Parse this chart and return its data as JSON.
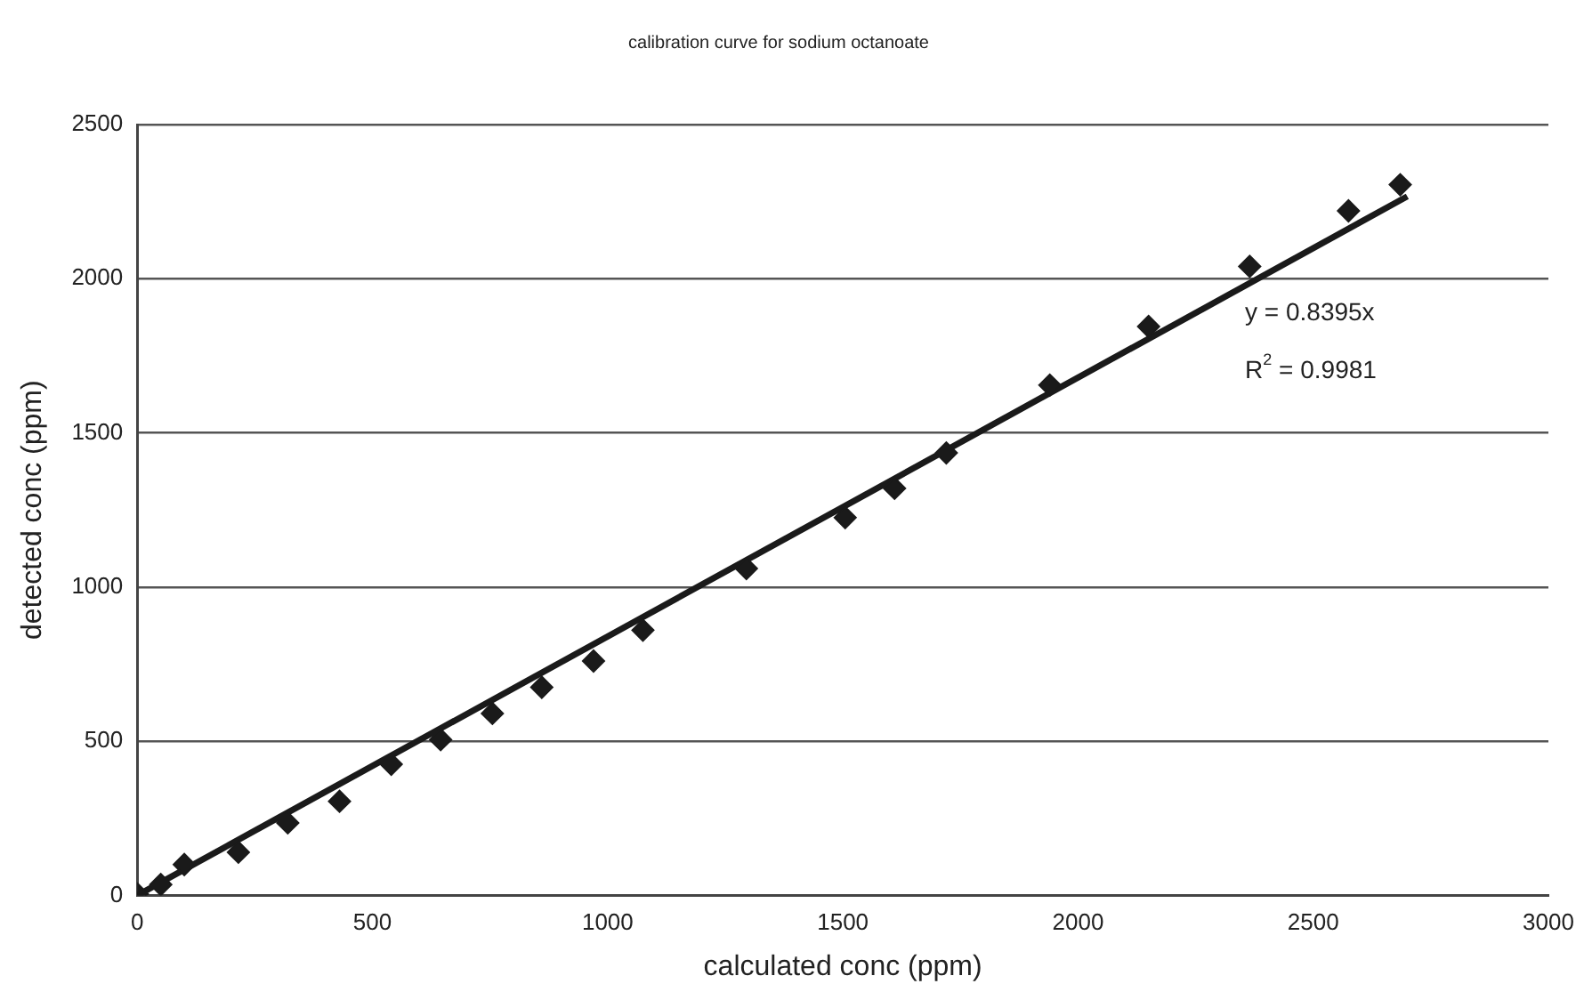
{
  "chart_data": {
    "type": "scatter",
    "title": "calibration curve for sodium octanoate",
    "xlabel": "calculated conc (ppm)",
    "ylabel": "detected conc (ppm)",
    "xlim": [
      0,
      3000
    ],
    "xticks": [
      0,
      500,
      1000,
      1500,
      2000,
      2500,
      3000
    ],
    "ylim": [
      0,
      2500
    ],
    "yticks": [
      0,
      500,
      1000,
      1500,
      2000,
      2500
    ],
    "grid": "y",
    "legend": false,
    "marker": "diamond",
    "annotations": [
      "y = 0.8395x",
      "R$^{2}$ = 0.9981"
    ],
    "series": [
      {
        "color": "#1a1a1a",
        "x": [
          0,
          50,
          100,
          215,
          320,
          430,
          540,
          645,
          755,
          860,
          970,
          1075,
          1295,
          1505,
          1610,
          1720,
          1940,
          2150,
          2365,
          2575,
          2685
        ],
        "values": [
          5,
          35,
          100,
          140,
          235,
          305,
          425,
          505,
          590,
          675,
          760,
          860,
          1060,
          1225,
          1320,
          1435,
          1655,
          1845,
          2040,
          2220,
          2305
        ]
      },
      {
        "type": "line",
        "color": "#1a1a1a",
        "marker": "none",
        "line_style": "solid",
        "x": [
          0,
          2700
        ],
        "values": [
          0,
          2267
        ]
      }
    ]
  }
}
